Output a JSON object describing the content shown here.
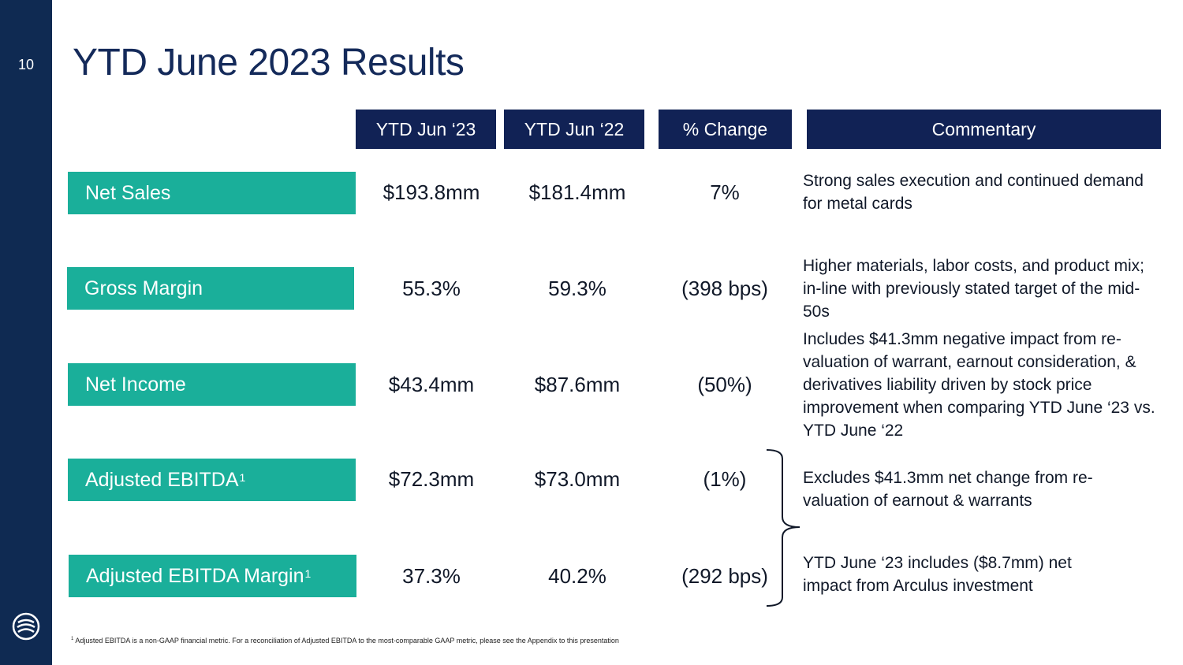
{
  "slide": {
    "page_number": "10",
    "title": "YTD June 2023 Results"
  },
  "headers": {
    "col1": "YTD Jun ‘23",
    "col2": "YTD Jun ‘22",
    "col3": "% Change",
    "col4": "Commentary"
  },
  "rows": [
    {
      "label": "Net Sales",
      "ytd_2023": "$193.8mm",
      "ytd_2022": "$181.4mm",
      "change": "7%",
      "commentary": "Strong sales execution and continued demand for metal cards"
    },
    {
      "label": "Gross Margin",
      "ytd_2023": "55.3%",
      "ytd_2022": "59.3%",
      "change": "(398 bps)",
      "commentary": "Higher materials, labor costs, and product mix; in-line with previously stated target of the mid-50s"
    },
    {
      "label": "Net Income",
      "ytd_2023": "$43.4mm",
      "ytd_2022": "$87.6mm",
      "change": "(50%)",
      "commentary": "Includes $41.3mm negative impact from re-valuation of warrant, earnout consideration, & derivatives liability driven by stock price improvement when comparing YTD June ‘23 vs. YTD June ‘22"
    },
    {
      "label": "Adjusted EBITDA",
      "label_sup": "1",
      "ytd_2023": "$72.3mm",
      "ytd_2022": "$73.0mm",
      "change": "(1%)",
      "commentary": "Excludes $41.3mm net change from re-valuation of earnout & warrants"
    },
    {
      "label": "Adjusted EBITDA Margin",
      "label_sup": "1",
      "ytd_2023": "37.3%",
      "ytd_2022": "40.2%",
      "change": "(292 bps)",
      "commentary": "YTD June ‘23 includes ($8.7mm) net impact from Arculus investment"
    }
  ],
  "footnote": {
    "marker": "1",
    "text": "Adjusted EBITDA is a non-GAAP financial metric. For a reconciliation of Adjusted EBITDA to the most-comparable GAAP metric, please see the Appendix to this presentation"
  },
  "colors": {
    "sidebar": "#0f2a52",
    "header": "#112255",
    "label_teal": "#1aaf9a",
    "title": "#142a5a"
  }
}
